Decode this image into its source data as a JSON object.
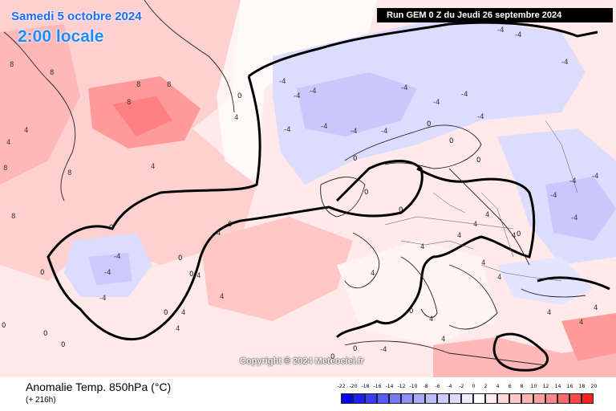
{
  "header": {
    "date": "Samedi 5 octobre 2024",
    "time": "2:00 locale",
    "run": "Run GEM 0 Z du Jeudi 26 septembre 2024"
  },
  "footer": {
    "field": "Anomalie Temp. 850hPa (°C)",
    "lead": "(+ 216h)",
    "copyright": "Copyright © 2024 Meteociel.fr"
  },
  "legend": {
    "ticks": [
      "-22",
      "-20",
      "-18",
      "-16",
      "-14",
      "-12",
      "-10",
      "-8",
      "-6",
      "-4",
      "-2",
      "0",
      "2",
      "4",
      "6",
      "8",
      "10",
      "12",
      "14",
      "16",
      "18",
      "20"
    ],
    "colors": [
      "#0000ff",
      "#1e1eff",
      "#3c3cff",
      "#5a5aff",
      "#7878ff",
      "#9090ff",
      "#a8a8ff",
      "#bcbcff",
      "#ccccff",
      "#dcdcff",
      "#ececff",
      "#ffffff",
      "#ffecec",
      "#ffd9d9",
      "#ffc8c8",
      "#ffb4b4",
      "#ffa0a0",
      "#ff8888",
      "#ff6a6a",
      "#ff4848",
      "#ff2020",
      "#ff0000"
    ]
  },
  "labels": {
    "warm": [
      "8",
      "8",
      "8",
      "8",
      "8",
      "8",
      "8",
      "8",
      "4",
      "4",
      "4",
      "4",
      "4",
      "4",
      "4",
      "4",
      "4",
      "4",
      "4",
      "4",
      "4",
      "4",
      "4",
      "4",
      "4",
      "4",
      "4",
      "4",
      "4",
      "4"
    ],
    "cold": [
      "-4",
      "-4",
      "-4",
      "-4",
      "-4",
      "-4",
      "-4",
      "-4",
      "-4",
      "-4",
      "-4",
      "-4",
      "-4",
      "-4",
      "-4",
      "-4",
      "-4",
      "-4",
      "-4",
      "-4",
      "-4",
      "-4"
    ],
    "zero": [
      "0",
      "0",
      "0",
      "0",
      "0",
      "0",
      "0",
      "0",
      "0",
      "0",
      "0",
      "0",
      "0",
      "0",
      "0",
      "0",
      "0",
      "0",
      "0",
      "0"
    ]
  }
}
